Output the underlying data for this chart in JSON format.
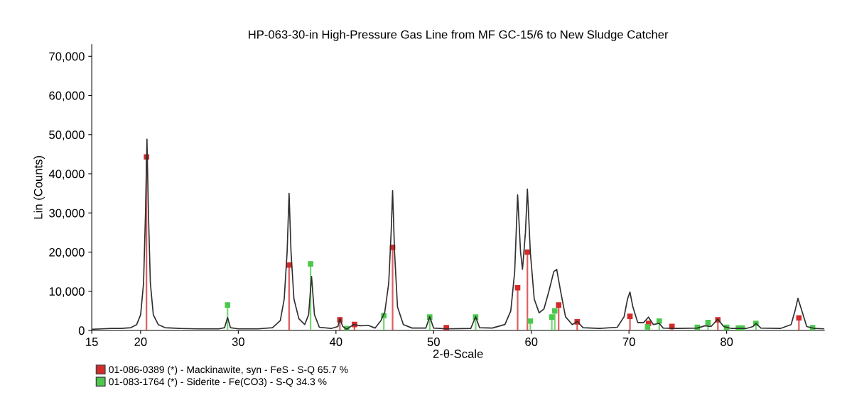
{
  "chart_data": {
    "type": "line",
    "title": "HP-063-30-in High-Pressure Gas Line from MF GC-15/6 to New Sludge Catcher",
    "xlabel": "2-θ-Scale",
    "ylabel": "Lin (Counts)",
    "xlim": [
      15,
      90
    ],
    "xticks": [
      15,
      20,
      30,
      40,
      50,
      60,
      70,
      80
    ],
    "ylim": [
      0,
      73000
    ],
    "yticks": [
      {
        "value": 0,
        "label": "0"
      },
      {
        "value": 10000,
        "label": "10,000"
      },
      {
        "value": 20000,
        "label": "20,000"
      },
      {
        "value": 30000,
        "label": "30,000"
      },
      {
        "value": 40000,
        "label": "40,000"
      },
      {
        "value": 50000,
        "label": "50,000"
      },
      {
        "value": 60000,
        "label": "60,000"
      },
      {
        "value": 70000,
        "label": "70,000"
      }
    ],
    "grid": false,
    "legend": "bottom",
    "series": [
      {
        "color": "#303030",
        "x": [
          15,
          16,
          17,
          18,
          19,
          19.6,
          20.0,
          20.3,
          20.5,
          20.65,
          20.8,
          21.0,
          21.3,
          21.8,
          22.5,
          24,
          26,
          28,
          28.6,
          28.9,
          29.2,
          30,
          32,
          33.5,
          34.3,
          34.7,
          35.0,
          35.2,
          35.4,
          35.7,
          36.2,
          36.8,
          37.2,
          37.5,
          37.8,
          38.3,
          39.5,
          40.2,
          40.4,
          40.7,
          41.1,
          41.8,
          42.5,
          43.3,
          44,
          44.6,
          45.0,
          45.4,
          45.65,
          45.8,
          46.0,
          46.3,
          46.9,
          47.8,
          49.2,
          49.6,
          50.0,
          51.3,
          53.8,
          54.3,
          54.7,
          56,
          57.3,
          57.9,
          58.3,
          58.6,
          58.9,
          59.1,
          59.4,
          59.6,
          59.9,
          60.3,
          60.8,
          61.3,
          61.8,
          62.3,
          62.6,
          63.0,
          63.5,
          64.2,
          64.7,
          65.3,
          67,
          68.8,
          69.5,
          69.85,
          70.1,
          70.4,
          70.9,
          71.5,
          72.0,
          72.5,
          73.1,
          73.5,
          75,
          77,
          77.8,
          78.4,
          79.1,
          79.7,
          80.5,
          82,
          82.7,
          83.0,
          83.5,
          85.5,
          86.6,
          87.0,
          87.3,
          87.7,
          88.2,
          89,
          90
        ],
        "values": [
          300,
          400,
          500,
          500,
          700,
          1500,
          4000,
          12000,
          30000,
          48800,
          30000,
          12000,
          4000,
          1500,
          700,
          500,
          400,
          400,
          700,
          3300,
          700,
          400,
          400,
          700,
          2500,
          8000,
          20000,
          35000,
          20000,
          8000,
          3000,
          1500,
          4000,
          13800,
          4000,
          800,
          500,
          1000,
          3000,
          1000,
          300,
          1500,
          1200,
          1300,
          600,
          2500,
          4700,
          12000,
          25000,
          35700,
          20000,
          6000,
          1500,
          600,
          600,
          3500,
          600,
          400,
          500,
          3500,
          700,
          600,
          1500,
          5000,
          15000,
          34600,
          20000,
          15600,
          25000,
          36100,
          20000,
          8000,
          4500,
          5500,
          10000,
          15000,
          15600,
          10000,
          3500,
          1500,
          2300,
          700,
          500,
          800,
          3500,
          8000,
          9800,
          6000,
          2000,
          2000,
          3400,
          1500,
          1800,
          600,
          500,
          600,
          1200,
          1000,
          2900,
          1000,
          500,
          500,
          1000,
          1800,
          600,
          500,
          1500,
          5000,
          8200,
          5000,
          1000,
          500,
          400
        ]
      },
      {
        "type": "lollipop",
        "name": "01-086-0389 (*) - Mackinawite, syn - FeS - S-Q 65.7 %",
        "color": "#d42a2a",
        "marker": "square",
        "x": [
          20.6,
          35.2,
          40.4,
          41.9,
          45.8,
          51.3,
          58.6,
          59.6,
          62.8,
          64.7,
          70.1,
          72.0,
          74.4,
          79.1,
          87.4
        ],
        "values": [
          44300,
          16700,
          2700,
          1500,
          21200,
          700,
          10900,
          20000,
          6500,
          2200,
          3600,
          1800,
          1000,
          2700,
          3200
        ]
      },
      {
        "type": "lollipop",
        "name": "01-083-1764 (*) - Siderite - Fe(CO3) - S-Q 34.3 %",
        "color": "#4cc84c",
        "marker": "square",
        "x": [
          28.9,
          37.4,
          41.1,
          44.9,
          49.6,
          54.3,
          59.9,
          62.1,
          62.4,
          71.9,
          73.1,
          77.0,
          78.1,
          80.0,
          81.2,
          81.6,
          83.0,
          88.8
        ],
        "values": [
          6500,
          17000,
          500,
          3800,
          3400,
          3400,
          2400,
          3400,
          5000,
          900,
          2400,
          800,
          2000,
          800,
          600,
          600,
          1800,
          700
        ]
      }
    ]
  }
}
